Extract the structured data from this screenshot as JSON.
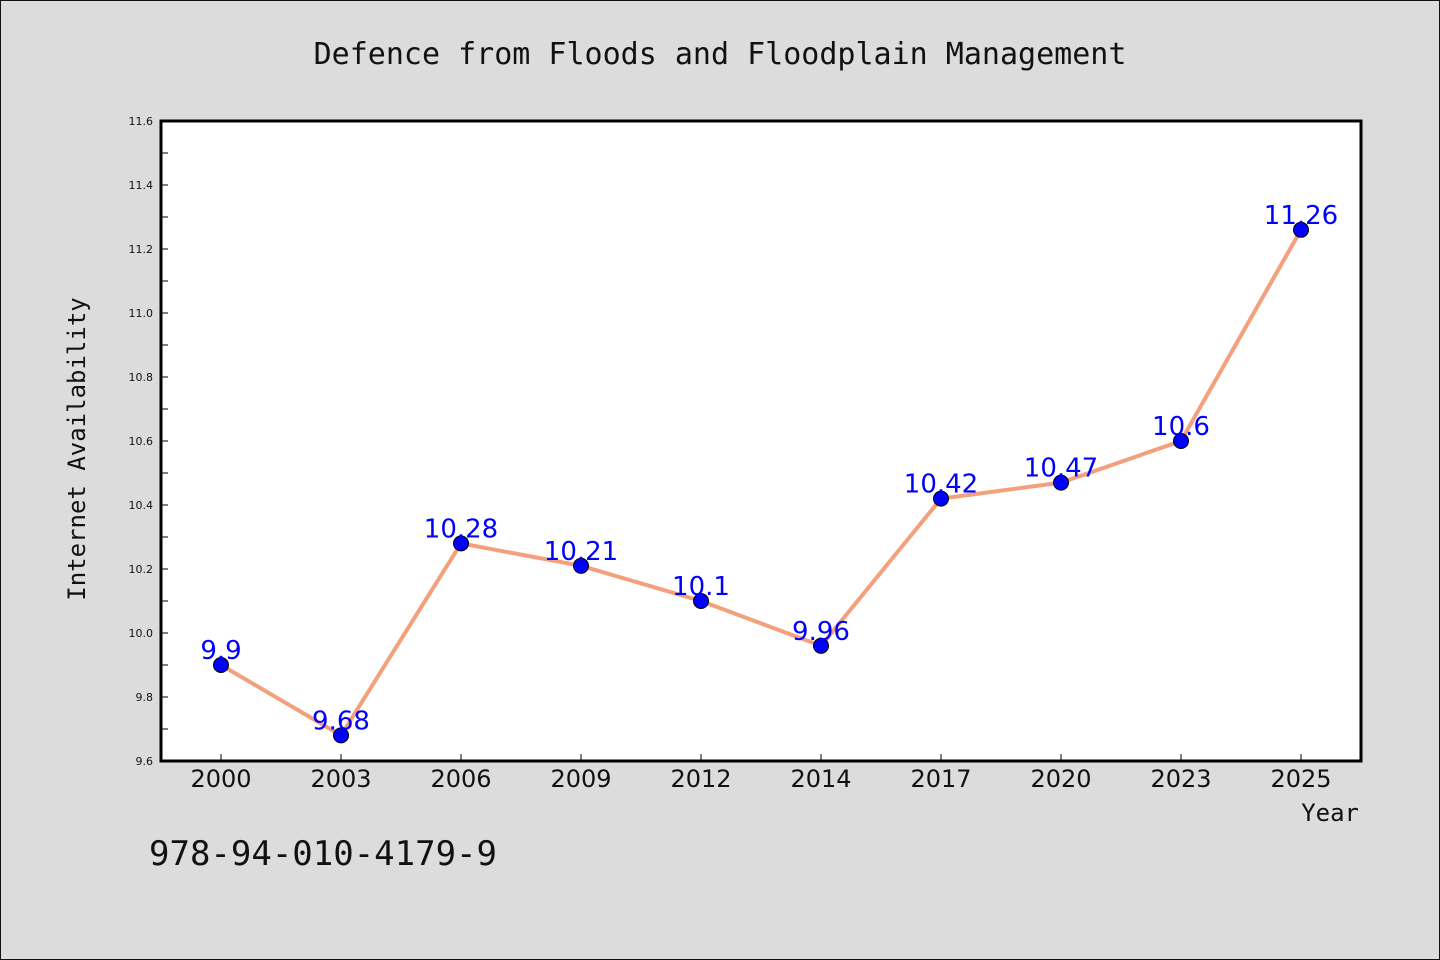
{
  "chart_data": {
    "type": "line",
    "title": "Defence from Floods and Floodplain Management",
    "xlabel": "Year",
    "ylabel": "Internet Availability",
    "categories": [
      "2000",
      "2003",
      "2006",
      "2009",
      "2012",
      "2014",
      "2017",
      "2020",
      "2023",
      "2025"
    ],
    "series": [
      {
        "values": [
          9.9,
          9.68,
          10.28,
          10.21,
          10.1,
          9.96,
          10.42,
          10.47,
          10.6,
          11.26
        ]
      }
    ],
    "data_labels": [
      "9.9",
      "9.68",
      "10.28",
      "10.21",
      "10.1",
      "9.96",
      "10.42",
      "10.47",
      "10.6",
      "11.26"
    ],
    "ylim": [
      9.6,
      11.6
    ],
    "yticks": [
      "9.6",
      "9.8",
      "10.0",
      "10.2",
      "10.4",
      "10.6",
      "10.8",
      "11.0",
      "11.2",
      "11.4",
      "11.6"
    ],
    "grid": false,
    "line_color": "#f4a07c",
    "marker_color": "#0000ff",
    "label_color": "#0000ff"
  },
  "annotation": {
    "text": "978-94-010-4179-9"
  }
}
